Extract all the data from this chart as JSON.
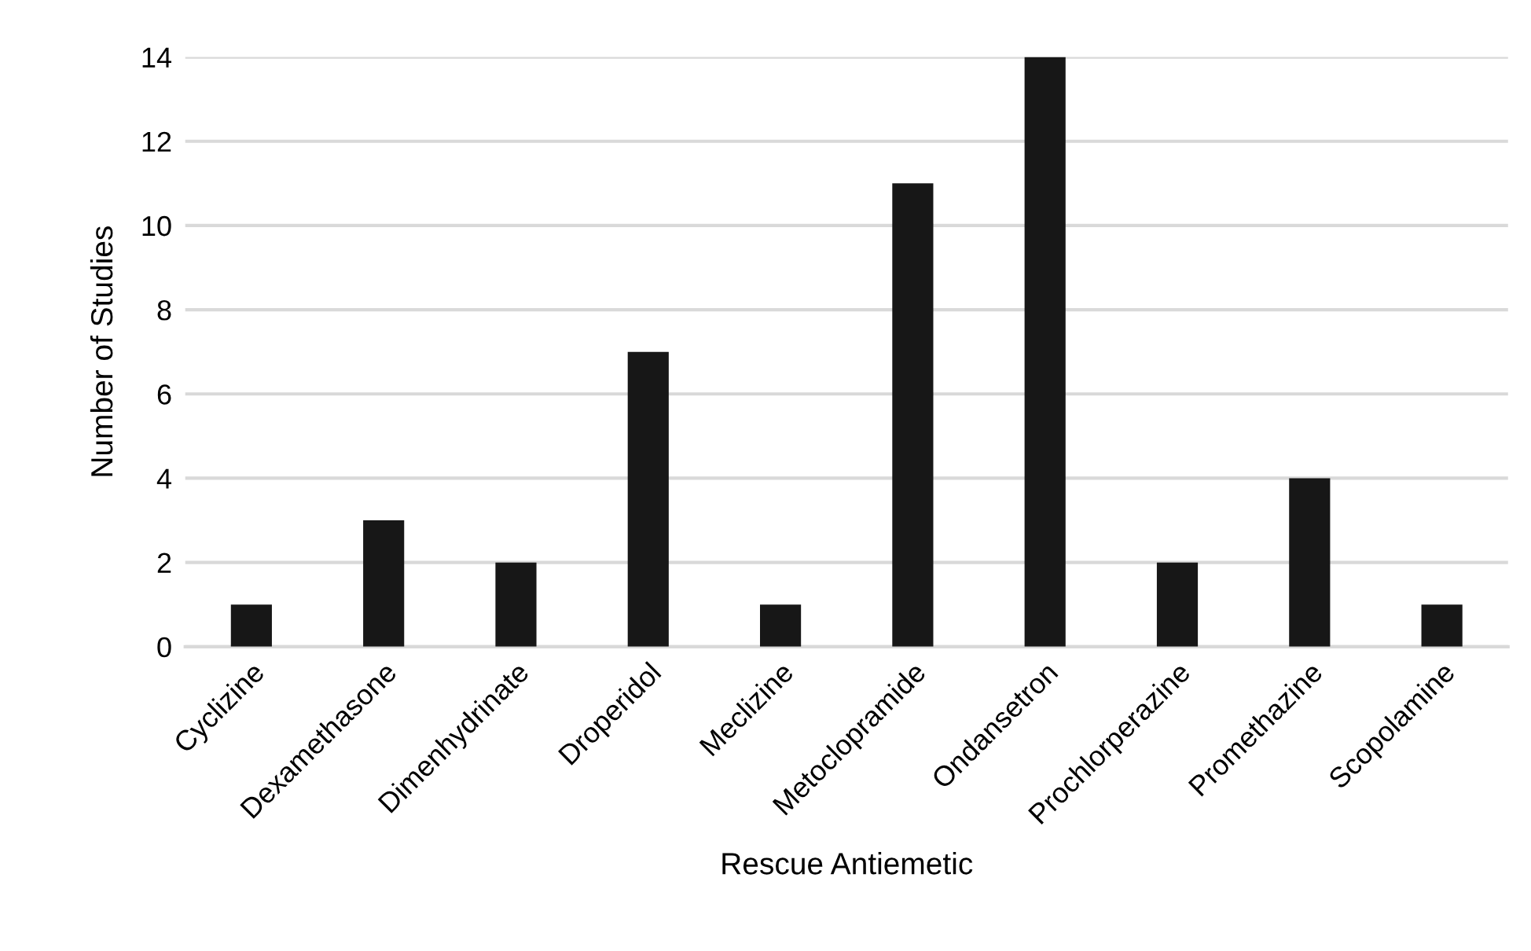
{
  "chart_data": {
    "type": "bar",
    "xlabel": "Rescue Antiemetic",
    "ylabel": "Number of Studies",
    "categories": [
      "Cyclizine",
      "Dexamethasone",
      "Dimenhydrinate",
      "Droperidol",
      "Meclizine",
      "Metoclopramide",
      "Ondansetron",
      "Prochlorperazine",
      "Promethazine",
      "Scopolamine"
    ],
    "values": [
      1,
      3,
      2,
      7,
      1,
      11,
      14,
      2,
      4,
      1
    ],
    "color": "#171717",
    "ylim": [
      0,
      14
    ],
    "yticks": [
      0,
      2,
      4,
      6,
      8,
      10,
      12,
      14
    ],
    "grid": "y"
  }
}
